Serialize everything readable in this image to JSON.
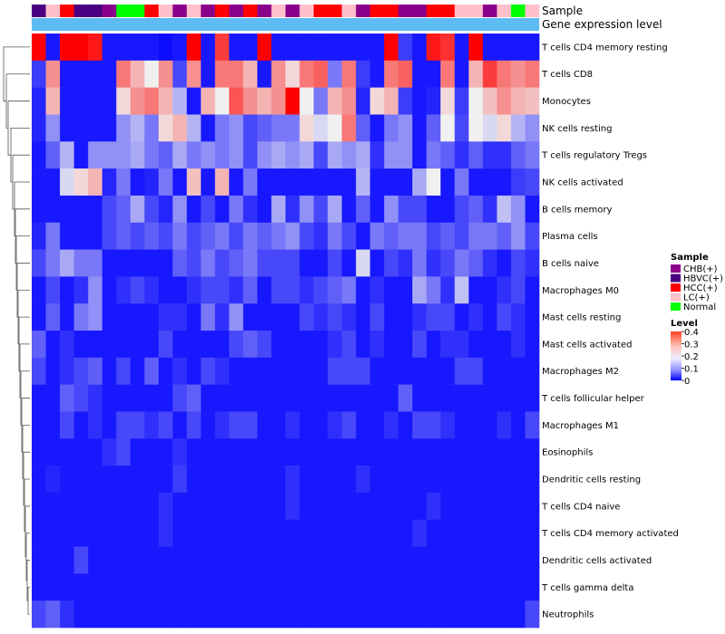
{
  "chart_data": {
    "type": "heatmap",
    "annotation_labels": {
      "sample": "Sample",
      "gene": "Gene expression level"
    },
    "rows": [
      "T cells CD4 memory resting",
      "T cells CD8",
      "Monocytes",
      "NK cells resting",
      "T cells regulatory  Tregs",
      "NK cells activated",
      "B cells memory",
      "Plasma cells",
      "B cells naive",
      "Macrophages M0",
      "Mast cells resting",
      "Mast cells activated",
      "Macrophages M2",
      "T cells follicular helper",
      "Macrophages M1",
      "Eosinophils",
      "Dendritic cells resting",
      "T cells CD4 naive",
      "T cells CD4 memory activated",
      "Dendritic cells activated",
      "T cells gamma delta",
      "Neutrophils"
    ],
    "sample_groups": [
      "HBVC(+)",
      "LC(+)",
      "HCC(+)",
      "HBVC(+)",
      "HBVC(+)",
      "CHB(+)",
      "Normal",
      "Normal",
      "HCC(+)",
      "LC(+)",
      "CHB(+)",
      "LC(+)",
      "CHB(+)",
      "HCC(+)",
      "CHB(+)",
      "HCC(+)",
      "CHB(+)",
      "LC(+)",
      "CHB(+)",
      "LC(+)",
      "HCC(+)",
      "HCC(+)",
      "LC(+)",
      "CHB(+)",
      "HCC(+)",
      "HCC(+)",
      "CHB(+)",
      "CHB(+)",
      "HCC(+)",
      "HCC(+)",
      "LC(+)",
      "LC(+)",
      "CHB(+)",
      "LC(+)",
      "Normal",
      "LC(+)"
    ],
    "legend": {
      "sample_title": "Sample",
      "sample_items": [
        {
          "label": "CHB(+)",
          "color": "#8B008B"
        },
        {
          "label": "HBVC(+)",
          "color": "#4B0082"
        },
        {
          "label": "HCC(+)",
          "color": "#FF0000"
        },
        {
          "label": "LC(+)",
          "color": "#FFC0CB"
        },
        {
          "label": "Normal",
          "color": "#00FF00"
        }
      ],
      "level_title": "Level",
      "level_ticks": [
        "0.4",
        "0.3",
        "0.2",
        "0.1",
        "0"
      ]
    },
    "value_range": [
      0,
      0.4
    ],
    "colors": {
      "low": "#0000ff",
      "mid": "#f0f0f0",
      "high": "#ff0000",
      "gene_bar": "#5ebcf2"
    },
    "values": [
      [
        0.4,
        0.02,
        0.4,
        0.4,
        0.38,
        0.02,
        0.02,
        0.02,
        0.02,
        0.01,
        0.02,
        0.4,
        0.02,
        0.35,
        0.02,
        0.02,
        0.4,
        0.02,
        0.02,
        0.02,
        0.02,
        0.02,
        0.02,
        0.02,
        0.02,
        0.4,
        0.05,
        0.02,
        0.38,
        0.36,
        0.02,
        0.4,
        0.02,
        0.02,
        0.02,
        0.02
      ],
      [
        0.05,
        0.28,
        0.02,
        0.02,
        0.02,
        0.02,
        0.3,
        0.25,
        0.2,
        0.28,
        0.06,
        0.28,
        0.02,
        0.3,
        0.3,
        0.25,
        0.02,
        0.28,
        0.22,
        0.3,
        0.32,
        0.1,
        0.3,
        0.05,
        0.02,
        0.3,
        0.32,
        0.02,
        0.02,
        0.3,
        0.02,
        0.25,
        0.35,
        0.3,
        0.28,
        0.3
      ],
      [
        0.03,
        0.25,
        0.02,
        0.02,
        0.02,
        0.02,
        0.22,
        0.28,
        0.3,
        0.25,
        0.15,
        0.02,
        0.25,
        0.2,
        0.33,
        0.28,
        0.25,
        0.28,
        0.4,
        0.2,
        0.1,
        0.25,
        0.28,
        0.03,
        0.22,
        0.25,
        0.05,
        0.02,
        0.03,
        0.22,
        0.05,
        0.2,
        0.24,
        0.28,
        0.25,
        0.24
      ],
      [
        0.03,
        0.12,
        0.02,
        0.02,
        0.02,
        0.02,
        0.12,
        0.15,
        0.1,
        0.22,
        0.25,
        0.15,
        0.02,
        0.1,
        0.12,
        0.06,
        0.08,
        0.1,
        0.1,
        0.22,
        0.18,
        0.2,
        0.3,
        0.08,
        0.02,
        0.1,
        0.12,
        0.02,
        0.08,
        0.2,
        0.06,
        0.2,
        0.18,
        0.22,
        0.15,
        0.12
      ],
      [
        0.02,
        0.08,
        0.15,
        0.02,
        0.12,
        0.12,
        0.12,
        0.14,
        0.1,
        0.08,
        0.14,
        0.1,
        0.12,
        0.1,
        0.12,
        0.06,
        0.12,
        0.14,
        0.12,
        0.14,
        0.06,
        0.14,
        0.12,
        0.14,
        0.04,
        0.12,
        0.12,
        0.02,
        0.1,
        0.08,
        0.04,
        0.08,
        0.04,
        0.04,
        0.08,
        0.1
      ],
      [
        0.02,
        0.02,
        0.18,
        0.22,
        0.25,
        0.03,
        0.1,
        0.02,
        0.03,
        0.1,
        0.02,
        0.24,
        0.02,
        0.25,
        0.02,
        0.1,
        0.02,
        0.02,
        0.02,
        0.02,
        0.02,
        0.02,
        0.02,
        0.15,
        0.02,
        0.02,
        0.02,
        0.14,
        0.2,
        0.02,
        0.1,
        0.02,
        0.02,
        0.02,
        0.05,
        0.06
      ],
      [
        0.02,
        0.02,
        0.02,
        0.02,
        0.02,
        0.06,
        0.08,
        0.14,
        0.06,
        0.03,
        0.12,
        0.02,
        0.06,
        0.02,
        0.1,
        0.04,
        0.02,
        0.14,
        0.04,
        0.12,
        0.06,
        0.14,
        0.02,
        0.08,
        0.02,
        0.12,
        0.06,
        0.06,
        0.02,
        0.02,
        0.06,
        0.08,
        0.04,
        0.16,
        0.12,
        0.02
      ],
      [
        0.03,
        0.1,
        0.02,
        0.02,
        0.02,
        0.06,
        0.08,
        0.06,
        0.08,
        0.06,
        0.1,
        0.06,
        0.08,
        0.1,
        0.06,
        0.1,
        0.08,
        0.1,
        0.12,
        0.06,
        0.04,
        0.1,
        0.06,
        0.02,
        0.1,
        0.08,
        0.1,
        0.1,
        0.06,
        0.08,
        0.06,
        0.1,
        0.1,
        0.08,
        0.12,
        0.06
      ],
      [
        0.06,
        0.1,
        0.14,
        0.1,
        0.1,
        0.02,
        0.02,
        0.02,
        0.02,
        0.02,
        0.08,
        0.06,
        0.1,
        0.06,
        0.08,
        0.1,
        0.06,
        0.06,
        0.06,
        0.02,
        0.02,
        0.06,
        0.02,
        0.18,
        0.02,
        0.06,
        0.04,
        0.1,
        0.04,
        0.06,
        0.1,
        0.08,
        0.04,
        0.02,
        0.06,
        0.04
      ],
      [
        0.02,
        0.06,
        0.02,
        0.04,
        0.12,
        0.02,
        0.04,
        0.06,
        0.04,
        0.02,
        0.02,
        0.04,
        0.06,
        0.06,
        0.04,
        0.08,
        0.02,
        0.06,
        0.06,
        0.04,
        0.06,
        0.08,
        0.1,
        0.02,
        0.04,
        0.02,
        0.02,
        0.14,
        0.1,
        0.04,
        0.16,
        0.02,
        0.02,
        0.04,
        0.06,
        0.02
      ],
      [
        0.02,
        0.08,
        0.02,
        0.1,
        0.12,
        0.02,
        0.02,
        0.02,
        0.02,
        0.04,
        0.04,
        0.02,
        0.1,
        0.04,
        0.12,
        0.02,
        0.02,
        0.02,
        0.02,
        0.06,
        0.04,
        0.06,
        0.04,
        0.02,
        0.06,
        0.02,
        0.02,
        0.04,
        0.06,
        0.06,
        0.02,
        0.04,
        0.02,
        0.06,
        0.04,
        0.02
      ],
      [
        0.08,
        0.02,
        0.04,
        0.02,
        0.02,
        0.02,
        0.02,
        0.02,
        0.02,
        0.06,
        0.02,
        0.02,
        0.02,
        0.02,
        0.06,
        0.08,
        0.06,
        0.02,
        0.02,
        0.02,
        0.02,
        0.04,
        0.06,
        0.02,
        0.04,
        0.02,
        0.02,
        0.06,
        0.02,
        0.04,
        0.04,
        0.02,
        0.02,
        0.02,
        0.04,
        0.02
      ],
      [
        0.06,
        0.02,
        0.04,
        0.06,
        0.08,
        0.02,
        0.06,
        0.02,
        0.08,
        0.02,
        0.04,
        0.02,
        0.06,
        0.04,
        0.02,
        0.02,
        0.02,
        0.02,
        0.02,
        0.02,
        0.02,
        0.06,
        0.06,
        0.06,
        0.02,
        0.02,
        0.02,
        0.02,
        0.02,
        0.02,
        0.06,
        0.06,
        0.02,
        0.02,
        0.02,
        0.02
      ],
      [
        0.02,
        0.02,
        0.08,
        0.06,
        0.04,
        0.02,
        0.02,
        0.02,
        0.02,
        0.02,
        0.06,
        0.08,
        0.02,
        0.02,
        0.02,
        0.02,
        0.02,
        0.02,
        0.02,
        0.02,
        0.02,
        0.02,
        0.02,
        0.02,
        0.02,
        0.02,
        0.08,
        0.02,
        0.02,
        0.02,
        0.02,
        0.02,
        0.02,
        0.02,
        0.02,
        0.02
      ],
      [
        0.02,
        0.02,
        0.06,
        0.02,
        0.04,
        0.02,
        0.06,
        0.06,
        0.04,
        0.06,
        0.02,
        0.06,
        0.02,
        0.04,
        0.06,
        0.06,
        0.02,
        0.02,
        0.04,
        0.02,
        0.02,
        0.04,
        0.06,
        0.02,
        0.02,
        0.04,
        0.02,
        0.06,
        0.06,
        0.04,
        0.02,
        0.02,
        0.02,
        0.04,
        0.02,
        0.06
      ],
      [
        0.02,
        0.02,
        0.02,
        0.02,
        0.02,
        0.04,
        0.06,
        0.02,
        0.02,
        0.02,
        0.04,
        0.02,
        0.02,
        0.02,
        0.02,
        0.02,
        0.02,
        0.02,
        0.02,
        0.02,
        0.02,
        0.02,
        0.02,
        0.02,
        0.02,
        0.02,
        0.02,
        0.02,
        0.02,
        0.02,
        0.02,
        0.02,
        0.02,
        0.02,
        0.02,
        0.02
      ],
      [
        0.02,
        0.03,
        0.02,
        0.02,
        0.02,
        0.02,
        0.02,
        0.02,
        0.02,
        0.02,
        0.05,
        0.02,
        0.02,
        0.02,
        0.02,
        0.02,
        0.02,
        0.02,
        0.04,
        0.02,
        0.02,
        0.02,
        0.02,
        0.04,
        0.02,
        0.02,
        0.02,
        0.02,
        0.02,
        0.02,
        0.02,
        0.02,
        0.02,
        0.02,
        0.02,
        0.02
      ],
      [
        0.02,
        0.02,
        0.02,
        0.02,
        0.02,
        0.02,
        0.02,
        0.02,
        0.02,
        0.04,
        0.02,
        0.02,
        0.02,
        0.02,
        0.02,
        0.02,
        0.02,
        0.02,
        0.04,
        0.02,
        0.02,
        0.02,
        0.02,
        0.02,
        0.02,
        0.02,
        0.02,
        0.02,
        0.04,
        0.02,
        0.02,
        0.02,
        0.02,
        0.02,
        0.02,
        0.02
      ],
      [
        0.02,
        0.02,
        0.02,
        0.02,
        0.02,
        0.02,
        0.02,
        0.02,
        0.02,
        0.04,
        0.02,
        0.02,
        0.02,
        0.02,
        0.02,
        0.02,
        0.02,
        0.02,
        0.02,
        0.02,
        0.02,
        0.02,
        0.02,
        0.02,
        0.02,
        0.02,
        0.02,
        0.04,
        0.02,
        0.02,
        0.02,
        0.02,
        0.02,
        0.02,
        0.02,
        0.02
      ],
      [
        0.02,
        0.02,
        0.02,
        0.06,
        0.02,
        0.02,
        0.02,
        0.02,
        0.02,
        0.02,
        0.02,
        0.02,
        0.02,
        0.02,
        0.02,
        0.02,
        0.02,
        0.02,
        0.02,
        0.02,
        0.02,
        0.02,
        0.02,
        0.02,
        0.02,
        0.02,
        0.02,
        0.02,
        0.02,
        0.02,
        0.02,
        0.02,
        0.02,
        0.02,
        0.02,
        0.02
      ],
      [
        0.02,
        0.02,
        0.02,
        0.02,
        0.02,
        0.02,
        0.02,
        0.02,
        0.02,
        0.02,
        0.02,
        0.02,
        0.02,
        0.02,
        0.02,
        0.02,
        0.02,
        0.02,
        0.02,
        0.02,
        0.02,
        0.02,
        0.02,
        0.02,
        0.02,
        0.02,
        0.02,
        0.02,
        0.02,
        0.02,
        0.02,
        0.02,
        0.02,
        0.02,
        0.02,
        0.02
      ],
      [
        0.06,
        0.08,
        0.04,
        0.02,
        0.02,
        0.02,
        0.02,
        0.02,
        0.02,
        0.02,
        0.02,
        0.02,
        0.02,
        0.02,
        0.02,
        0.02,
        0.02,
        0.02,
        0.02,
        0.02,
        0.02,
        0.02,
        0.02,
        0.02,
        0.02,
        0.02,
        0.02,
        0.02,
        0.02,
        0.02,
        0.02,
        0.02,
        0.02,
        0.02,
        0.02,
        0.06
      ]
    ]
  }
}
